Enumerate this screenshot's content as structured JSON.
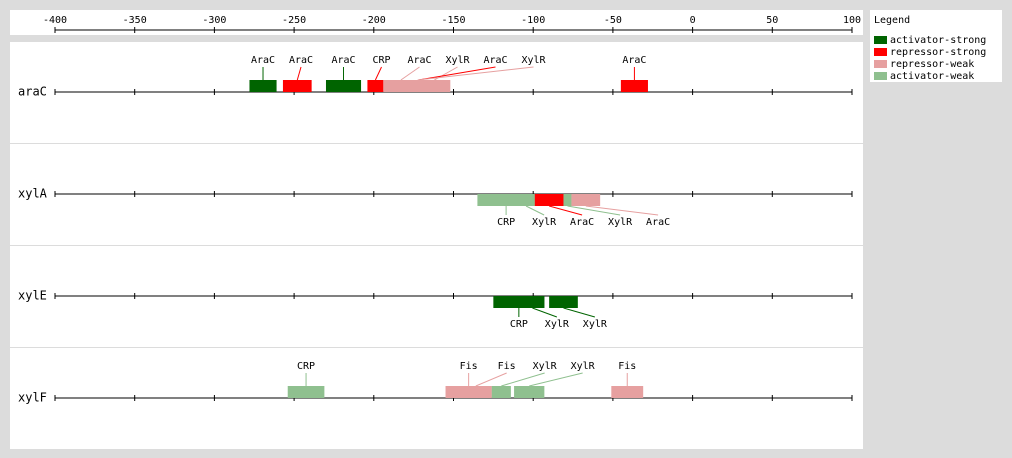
{
  "chart_data": {
    "type": "feature-track",
    "xlim": [
      -400,
      100
    ],
    "xticks": [
      -400,
      -350,
      -300,
      -250,
      -200,
      -150,
      -100,
      -50,
      0,
      50,
      100
    ],
    "legend_title": "Legend",
    "legend": "top-right",
    "series": [
      {
        "name": "activator-strong",
        "color": "#006400"
      },
      {
        "name": "repressor-strong",
        "color": "#ff0000"
      },
      {
        "name": "repressor-weak",
        "color": "#e6a0a0"
      },
      {
        "name": "activator-weak",
        "color": "#8fc08f"
      }
    ],
    "rows": [
      {
        "name": "araC",
        "labels": "above",
        "sites": [
          {
            "label": "AraC",
            "start": -278,
            "end": -261,
            "kind": 0
          },
          {
            "label": "AraC",
            "start": -257,
            "end": -239,
            "kind": 1
          },
          {
            "label": "AraC",
            "start": -230,
            "end": -208,
            "kind": 0
          },
          {
            "label": "CRP",
            "start": -204,
            "end": -194,
            "kind": 1
          },
          {
            "label": "AraC",
            "start": -194,
            "end": -172,
            "kind": 2
          },
          {
            "label": "XylR",
            "start": -172,
            "end": -152,
            "kind": 2
          },
          {
            "label": "AraC",
            "start": -173,
            "end": -171,
            "kind": 1
          },
          {
            "label": "XylR",
            "start": -187,
            "end": -158,
            "kind": 2
          },
          {
            "label": "AraC",
            "start": -45,
            "end": -28,
            "kind": 1
          }
        ]
      },
      {
        "name": "xylA",
        "labels": "below",
        "sites": [
          {
            "label": "CRP",
            "start": -135,
            "end": -99,
            "kind": 3
          },
          {
            "label": "XylR",
            "start": -110,
            "end": -99,
            "kind": 3
          },
          {
            "label": "AraC",
            "start": -99,
            "end": -81,
            "kind": 1
          },
          {
            "label": "XylR",
            "start": -81,
            "end": -76,
            "kind": 3
          },
          {
            "label": "AraC",
            "start": -76,
            "end": -58,
            "kind": 2
          }
        ]
      },
      {
        "name": "xylE",
        "labels": "below",
        "sites": [
          {
            "label": "CRP",
            "start": -125,
            "end": -93,
            "kind": 0
          },
          {
            "label": "XylR",
            "start": -108,
            "end": -93,
            "kind": 0
          },
          {
            "label": "XylR",
            "start": -90,
            "end": -72,
            "kind": 0
          }
        ]
      },
      {
        "name": "xylF",
        "labels": "above",
        "sites": [
          {
            "label": "CRP",
            "start": -254,
            "end": -231,
            "kind": 3
          },
          {
            "label": "Fis",
            "start": -155,
            "end": -126,
            "kind": 2
          },
          {
            "label": "Fis",
            "start": -146,
            "end": -126,
            "kind": 2
          },
          {
            "label": "XylR",
            "start": -126,
            "end": -114,
            "kind": 3
          },
          {
            "label": "XylR",
            "start": -112,
            "end": -93,
            "kind": 3
          },
          {
            "label": "Fis",
            "start": -51,
            "end": -31,
            "kind": 2
          }
        ]
      }
    ]
  }
}
